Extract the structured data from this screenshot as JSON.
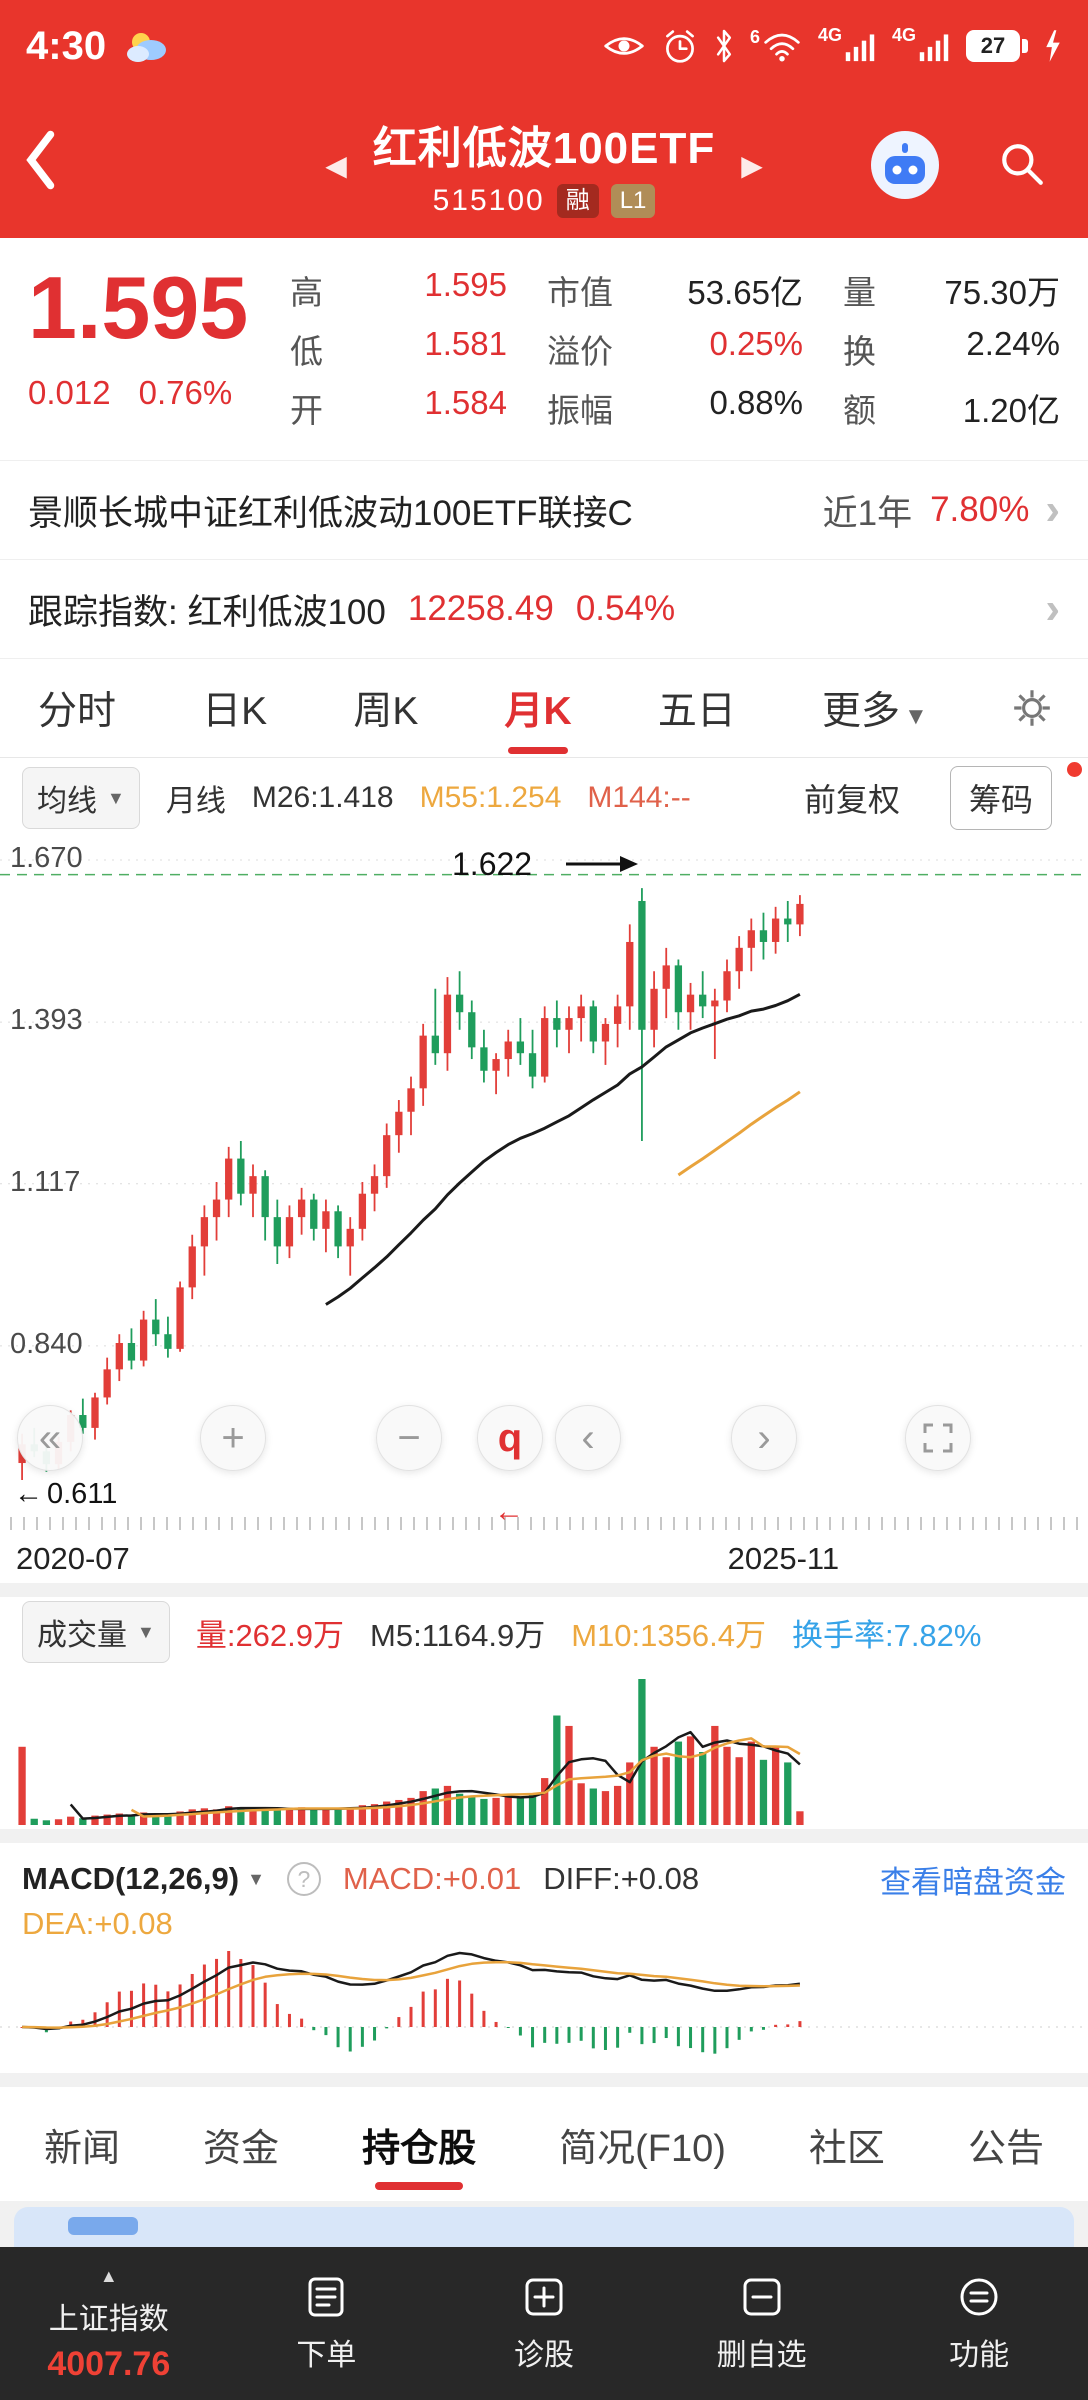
{
  "icons": {
    "caret_down": "▼",
    "tri_left": "◀",
    "tri_right": "▶",
    "tri_up": "▲",
    "arrow_left": "←",
    "chevron": "›",
    "nav_first": "«",
    "nav_plus": "+",
    "nav_minus": "−",
    "nav_q": "q",
    "nav_prev": "‹",
    "nav_next": "›",
    "question": "?"
  },
  "status_bar": {
    "time": "4:30",
    "battery_level": "27",
    "wifi_six": "6",
    "net1": "4G",
    "net2": "4G"
  },
  "header": {
    "title": "红利低波100ETF",
    "code": "515100",
    "badge_rong": "融",
    "badge_l1": "L1"
  },
  "quote": {
    "price": "1.595",
    "change": "0.012",
    "change_pct": "0.76%",
    "stats": [
      {
        "label": "高",
        "value": "1.595"
      },
      {
        "label": "市值",
        "value": "53.65亿"
      },
      {
        "label": "量",
        "value": "75.30万"
      },
      {
        "label": "低",
        "value": "1.581"
      },
      {
        "label": "溢价",
        "value": "0.25%"
      },
      {
        "label": "换",
        "value": "2.24%"
      },
      {
        "label": "开",
        "value": "1.584"
      },
      {
        "label": "振幅",
        "value": "0.88%"
      },
      {
        "label": "额",
        "value": "1.20亿"
      }
    ]
  },
  "fund_row": {
    "name": "景顺长城中证红利低波动100ETF联接C",
    "period": "近1年",
    "return": "7.80%"
  },
  "index_row": {
    "label": "跟踪指数: 红利低波100",
    "value": "12258.49",
    "pct": "0.54%"
  },
  "chart_tabs": {
    "items": [
      "分时",
      "日K",
      "周K",
      "月K",
      "五日",
      "更多"
    ],
    "active": "月K"
  },
  "chart_controls": {
    "ma": "均线",
    "period": "月线",
    "m26": "M26:1.418",
    "m55": "M55:1.254",
    "m144": "M144:--",
    "fq": "前复权",
    "chips": "筹码"
  },
  "kline": {
    "y_labels": [
      "1.670",
      "1.393",
      "1.117",
      "0.840"
    ],
    "min_label": "0.611",
    "peak_label": "1.622",
    "x_left": "2020-07",
    "x_right": "2025-11"
  },
  "volume_pane": {
    "title": "成交量",
    "vol": "量:262.9万",
    "m5": "M5:1164.9万",
    "m10": "M10:1356.4万",
    "turnover": "换手率:7.82%"
  },
  "macd_pane": {
    "title": "MACD(12,26,9)",
    "macd": "MACD:+0.01",
    "diff": "DIFF:+0.08",
    "dea": "DEA:+0.08",
    "link": "查看暗盘资金"
  },
  "bottom_tabs": {
    "items": [
      "新闻",
      "资金",
      "持仓股",
      "简况(F10)",
      "社区",
      "公告"
    ],
    "active": "持仓股"
  },
  "bottom_bar": {
    "index_label": "上证指数",
    "index_value": "4007.76",
    "items": [
      "下单",
      "诊股",
      "删自选",
      "功能"
    ]
  },
  "chart_data": {
    "type": "candlestick",
    "symbol": "515100",
    "period": "monthly",
    "x_start": "2020-07",
    "x_end": "2025-11",
    "y_range": [
      0.611,
      1.67
    ],
    "grid_levels": [
      1.67,
      1.393,
      1.117,
      0.84
    ],
    "dashed_level": 1.645,
    "annotations": {
      "peak_high": 1.622,
      "all_time_low": 0.611,
      "last_close": 1.595
    },
    "colors": {
      "up": "#e23e39",
      "down": "#1f9d5c",
      "ma26": "#1a1a1a",
      "ma55": "#e8a33c"
    },
    "overlays": {
      "ma26_last": 1.418,
      "ma55_last": 1.254,
      "ma144_last": null
    },
    "sub_indicators": {
      "volume": {
        "last": 262.9,
        "m5": 1164.9,
        "m10": 1356.4,
        "turnover_pct": 7.82
      },
      "macd": {
        "macd": 0.01,
        "diff": 0.08,
        "dea": 0.08,
        "params": [
          12,
          26,
          9
        ]
      }
    },
    "candles": [
      [
        0.64,
        0.69,
        0.611,
        0.672
      ],
      [
        0.672,
        0.7,
        0.65,
        0.66
      ],
      [
        0.66,
        0.672,
        0.625,
        0.638
      ],
      [
        0.638,
        0.685,
        0.63,
        0.676
      ],
      [
        0.676,
        0.73,
        0.66,
        0.722
      ],
      [
        0.722,
        0.75,
        0.69,
        0.7
      ],
      [
        0.7,
        0.76,
        0.68,
        0.752
      ],
      [
        0.752,
        0.82,
        0.74,
        0.8
      ],
      [
        0.8,
        0.86,
        0.78,
        0.845
      ],
      [
        0.845,
        0.87,
        0.8,
        0.815
      ],
      [
        0.815,
        0.9,
        0.805,
        0.885
      ],
      [
        0.885,
        0.92,
        0.84,
        0.86
      ],
      [
        0.86,
        0.89,
        0.82,
        0.835
      ],
      [
        0.835,
        0.95,
        0.83,
        0.94
      ],
      [
        0.94,
        1.03,
        0.92,
        1.01
      ],
      [
        1.01,
        1.08,
        0.96,
        1.06
      ],
      [
        1.06,
        1.12,
        1.02,
        1.09
      ],
      [
        1.09,
        1.18,
        1.06,
        1.16
      ],
      [
        1.16,
        1.19,
        1.08,
        1.1
      ],
      [
        1.1,
        1.15,
        1.06,
        1.13
      ],
      [
        1.13,
        1.14,
        1.02,
        1.06
      ],
      [
        1.06,
        1.09,
        0.98,
        1.01
      ],
      [
        1.01,
        1.08,
        0.99,
        1.06
      ],
      [
        1.06,
        1.11,
        1.03,
        1.09
      ],
      [
        1.09,
        1.1,
        1.02,
        1.04
      ],
      [
        1.04,
        1.09,
        1.0,
        1.07
      ],
      [
        1.07,
        1.08,
        0.99,
        1.01
      ],
      [
        1.01,
        1.06,
        0.96,
        1.04
      ],
      [
        1.04,
        1.12,
        1.02,
        1.1
      ],
      [
        1.1,
        1.15,
        1.07,
        1.13
      ],
      [
        1.13,
        1.22,
        1.11,
        1.2
      ],
      [
        1.2,
        1.26,
        1.17,
        1.24
      ],
      [
        1.24,
        1.3,
        1.2,
        1.28
      ],
      [
        1.28,
        1.39,
        1.25,
        1.37
      ],
      [
        1.37,
        1.45,
        1.32,
        1.34
      ],
      [
        1.34,
        1.47,
        1.31,
        1.44
      ],
      [
        1.44,
        1.48,
        1.38,
        1.41
      ],
      [
        1.41,
        1.43,
        1.33,
        1.35
      ],
      [
        1.35,
        1.38,
        1.29,
        1.31
      ],
      [
        1.31,
        1.34,
        1.27,
        1.33
      ],
      [
        1.33,
        1.38,
        1.3,
        1.36
      ],
      [
        1.36,
        1.4,
        1.32,
        1.34
      ],
      [
        1.34,
        1.38,
        1.28,
        1.3
      ],
      [
        1.3,
        1.42,
        1.29,
        1.4
      ],
      [
        1.4,
        1.43,
        1.35,
        1.38
      ],
      [
        1.38,
        1.42,
        1.34,
        1.4
      ],
      [
        1.4,
        1.44,
        1.36,
        1.42
      ],
      [
        1.42,
        1.43,
        1.34,
        1.36
      ],
      [
        1.36,
        1.4,
        1.32,
        1.39
      ],
      [
        1.39,
        1.44,
        1.35,
        1.42
      ],
      [
        1.42,
        1.56,
        1.38,
        1.53
      ],
      [
        1.6,
        1.622,
        1.19,
        1.38
      ],
      [
        1.38,
        1.48,
        1.35,
        1.45
      ],
      [
        1.45,
        1.52,
        1.4,
        1.49
      ],
      [
        1.49,
        1.5,
        1.38,
        1.41
      ],
      [
        1.41,
        1.46,
        1.38,
        1.44
      ],
      [
        1.44,
        1.48,
        1.4,
        1.42
      ],
      [
        1.42,
        1.45,
        1.33,
        1.43
      ],
      [
        1.43,
        1.5,
        1.41,
        1.48
      ],
      [
        1.48,
        1.54,
        1.45,
        1.52
      ],
      [
        1.52,
        1.57,
        1.48,
        1.55
      ],
      [
        1.55,
        1.58,
        1.5,
        1.53
      ],
      [
        1.53,
        1.59,
        1.51,
        1.57
      ],
      [
        1.57,
        1.6,
        1.53,
        1.56
      ],
      [
        1.56,
        1.61,
        1.54,
        1.595
      ]
    ],
    "volumes": [
      1500,
      120,
      90,
      110,
      160,
      130,
      180,
      200,
      220,
      180,
      240,
      200,
      190,
      260,
      300,
      320,
      300,
      360,
      340,
      300,
      320,
      280,
      300,
      340,
      300,
      320,
      300,
      340,
      380,
      400,
      450,
      480,
      520,
      650,
      700,
      750,
      600,
      550,
      500,
      520,
      560,
      520,
      600,
      900,
      2100,
      1900,
      800,
      700,
      650,
      750,
      1200,
      2800,
      1500,
      1300,
      1600,
      1700,
      1400,
      1900,
      1500,
      1300,
      1600,
      1250,
      1500,
      1200,
      263
    ]
  }
}
